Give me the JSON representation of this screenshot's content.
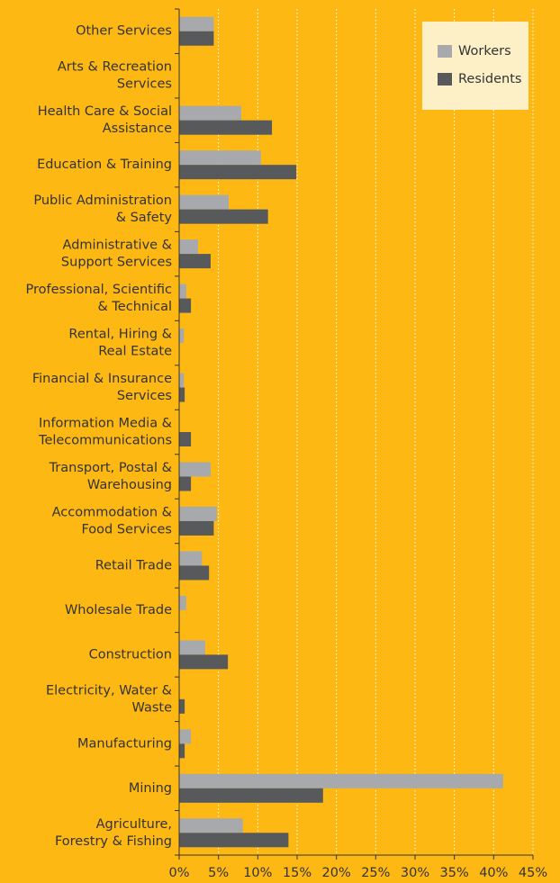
{
  "chart_data": {
    "type": "barh",
    "categories": [
      "Other Services",
      "Arts & Recreation\nServices",
      "Health Care & Social\nAssistance",
      "Education & Training",
      "Public Administration\n& Safety",
      "Administrative &\nSupport Services",
      "Professional, Scientific\n& Technical",
      "Rental, Hiring &\nReal Estate",
      "Financial & Insurance\nServices",
      "Information Media &\nTelecommunications",
      "Transport, Postal &\nWarehousing",
      "Accommodation &\nFood Services",
      "Retail Trade",
      "Wholesale Trade",
      "Construction",
      "Electricity, Water &\nWaste",
      "Manufacturing",
      "Mining",
      "Agriculture,\nForestry & Fishing"
    ],
    "series": [
      {
        "name": "Workers",
        "color": "#a7a9ac",
        "values": [
          4.4,
          0,
          7.9,
          10.4,
          6.3,
          2.4,
          0.9,
          0.6,
          0.6,
          0,
          4.0,
          4.8,
          2.9,
          0.9,
          3.3,
          0,
          1.5,
          41.2,
          8.1
        ]
      },
      {
        "name": "Residents",
        "color": "#58595b",
        "values": [
          4.4,
          0,
          11.8,
          14.9,
          11.3,
          4.0,
          1.5,
          0,
          0.7,
          1.5,
          1.5,
          4.4,
          3.8,
          0,
          6.2,
          0.7,
          0.7,
          18.3,
          13.9
        ]
      }
    ],
    "xlim": [
      0,
      45
    ],
    "xticks": [
      {
        "value": 0,
        "label": "0%"
      },
      {
        "value": 5,
        "label": "5%"
      },
      {
        "value": 10,
        "label": "10%"
      },
      {
        "value": 15,
        "label": "15%"
      },
      {
        "value": 20,
        "label": "20%"
      },
      {
        "value": 25,
        "label": "25%"
      },
      {
        "value": 30,
        "label": "30%"
      },
      {
        "value": 35,
        "label": "35%"
      },
      {
        "value": 40,
        "label": "40%"
      },
      {
        "value": 45,
        "label": "45%"
      }
    ],
    "grid": true,
    "legend": "top-right"
  }
}
